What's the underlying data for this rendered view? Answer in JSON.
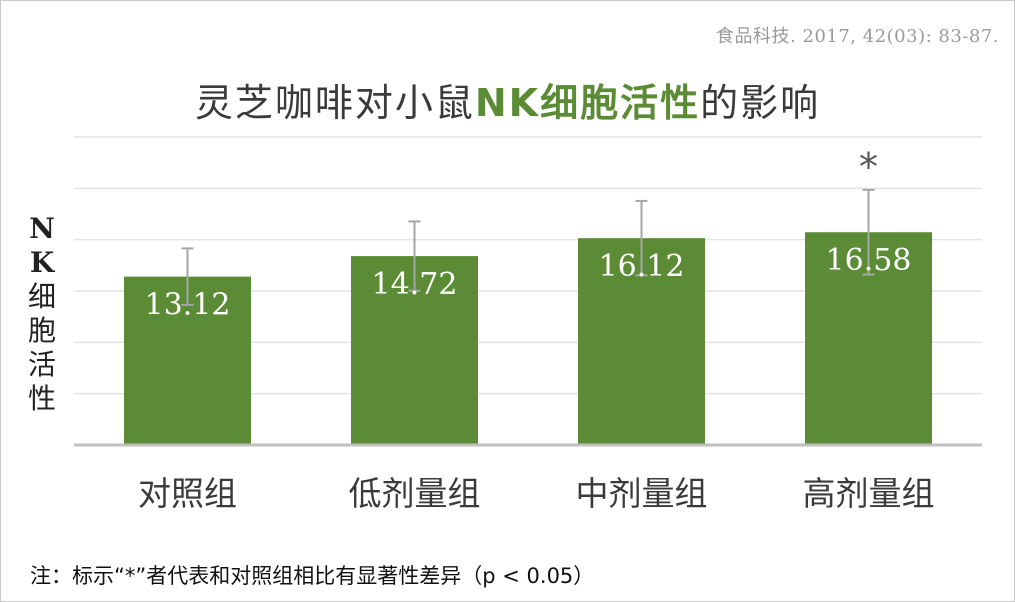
{
  "citation": "食品科技. 2017, 42(03): 83-87.",
  "title": {
    "part1": "灵芝咖啡对小鼠",
    "part2": "NK细胞活性",
    "part3": "的影响"
  },
  "ylabel": {
    "latin": "N K",
    "chinese": "细胞活性"
  },
  "note": "注：标示“*”者代表和对照组相比有显著性差异（p < 0.05）",
  "colors": {
    "bar": "#5b8c35",
    "title_highlight": "#5b8c35",
    "error_bar": "#a6a6a6",
    "grid": "#e3e3e3",
    "axis": "#bfbfbf"
  },
  "chart_data": {
    "type": "bar",
    "categories": [
      "对照组",
      "低剂量组",
      "中剂量组",
      "高剂量组"
    ],
    "values": [
      13.12,
      14.72,
      16.12,
      16.58
    ],
    "value_labels": [
      "13.12",
      "14.72",
      "16.12",
      "16.58"
    ],
    "error": [
      2.2,
      2.7,
      2.9,
      3.3
    ],
    "significance": [
      "",
      "",
      "",
      "*"
    ],
    "ylim": [
      0,
      24
    ],
    "grid": true,
    "grid_step": 4
  }
}
